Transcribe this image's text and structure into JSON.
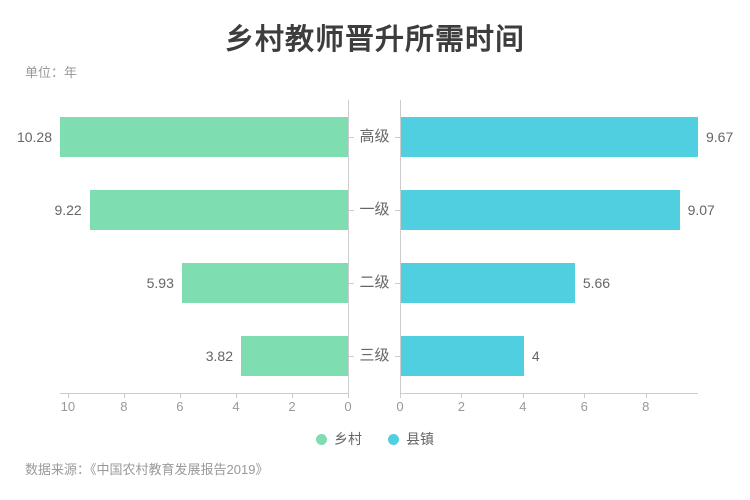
{
  "title": "乡村教师晋升所需时间",
  "unit_label": "单位：年",
  "source": "数据来源：《中国农村教育发展报告2019》",
  "colors": {
    "rural_green": "#7eddb1",
    "town_blue": "#4fcfe0",
    "axis_line": "#cccccc",
    "axis_text": "#999999",
    "value_text": "#666666",
    "title_text": "#3d3d3d"
  },
  "legend": [
    {
      "name": "乡村",
      "color": "#7eddb1"
    },
    {
      "name": "县镇",
      "color": "#4fcfe0"
    }
  ],
  "chart_data": {
    "type": "bar",
    "variant": "horizontal-bidirectional",
    "title": "乡村教师晋升所需时间",
    "unit": "年",
    "categories": [
      "高级",
      "一级",
      "二级",
      "三级"
    ],
    "series": [
      {
        "name": "乡村",
        "side": "left",
        "color": "#7eddb1",
        "values": [
          10.28,
          9.22,
          5.93,
          3.82
        ],
        "value_labels": [
          "10.28",
          "9.22",
          "5.93",
          "3.82"
        ],
        "axis_ticks": [
          10,
          8,
          6,
          4,
          2,
          0
        ],
        "axis_max": 10.28
      },
      {
        "name": "县镇",
        "side": "right",
        "color": "#4fcfe0",
        "values": [
          9.67,
          9.07,
          5.66,
          4
        ],
        "value_labels": [
          "9.67",
          "9.07",
          "5.66",
          "4"
        ],
        "axis_ticks": [
          0,
          2,
          4,
          6,
          8
        ],
        "axis_max": 9.67
      }
    ],
    "grid": false,
    "legend_position": "bottom",
    "source": "数据来源：《中国农村教育发展报告2019》"
  }
}
